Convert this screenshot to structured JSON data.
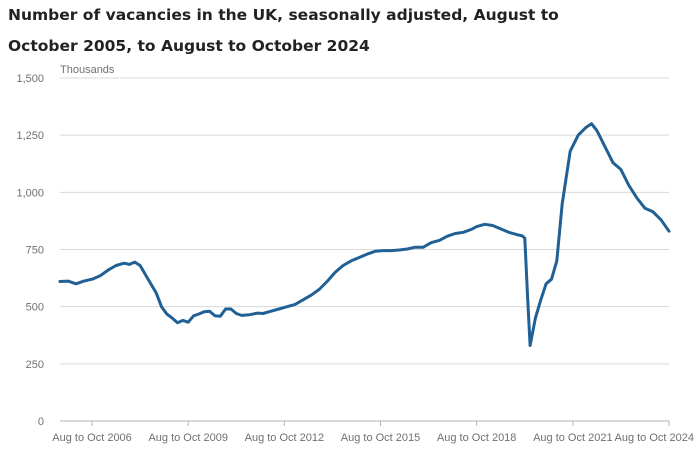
{
  "chart_data": {
    "type": "line",
    "title": "Number of vacancies in the UK, seasonally adjusted, August to October 2005, to August to October 2024",
    "ylabel": "Thousands",
    "xlabel": "",
    "ylim": [
      0,
      1500
    ],
    "xlim": [
      "2005-09",
      "2024-09"
    ],
    "grid": true,
    "legend": "none",
    "yticks": [
      {
        "value": 0,
        "label": "0"
      },
      {
        "value": 250,
        "label": "250"
      },
      {
        "value": 500,
        "label": "500"
      },
      {
        "value": 750,
        "label": "750"
      },
      {
        "value": 1000,
        "label": "1,000"
      },
      {
        "value": 1250,
        "label": "1,250"
      },
      {
        "value": 1500,
        "label": "1,500"
      }
    ],
    "xticks": [
      {
        "value": "2006-09",
        "label": "Aug to Oct 2006"
      },
      {
        "value": "2009-09",
        "label": "Aug to Oct 2009"
      },
      {
        "value": "2012-09",
        "label": "Aug to Oct 2012"
      },
      {
        "value": "2015-09",
        "label": "Aug to Oct 2015"
      },
      {
        "value": "2018-09",
        "label": "Aug to Oct 2018"
      },
      {
        "value": "2021-09",
        "label": "Aug to Oct 2021"
      },
      {
        "value": "2024-09",
        "label": "Aug to Oct 2024"
      }
    ],
    "series": [
      {
        "color": "#206095",
        "points": [
          [
            "2005-09",
            610
          ],
          [
            "2005-12",
            612
          ],
          [
            "2006-03",
            600
          ],
          [
            "2006-06",
            612
          ],
          [
            "2006-09",
            620
          ],
          [
            "2006-12",
            635
          ],
          [
            "2007-03",
            660
          ],
          [
            "2007-06",
            680
          ],
          [
            "2007-09",
            690
          ],
          [
            "2007-11",
            685
          ],
          [
            "2008-01",
            695
          ],
          [
            "2008-03",
            680
          ],
          [
            "2008-06",
            620
          ],
          [
            "2008-09",
            560
          ],
          [
            "2008-11",
            500
          ],
          [
            "2009-01",
            468
          ],
          [
            "2009-03",
            450
          ],
          [
            "2009-05",
            430
          ],
          [
            "2009-07",
            440
          ],
          [
            "2009-09",
            432
          ],
          [
            "2009-11",
            460
          ],
          [
            "2010-01",
            468
          ],
          [
            "2010-03",
            478
          ],
          [
            "2010-05",
            480
          ],
          [
            "2010-07",
            460
          ],
          [
            "2010-09",
            458
          ],
          [
            "2010-11",
            490
          ],
          [
            "2011-01",
            490
          ],
          [
            "2011-03",
            470
          ],
          [
            "2011-05",
            462
          ],
          [
            "2011-08",
            465
          ],
          [
            "2011-11",
            472
          ],
          [
            "2012-01",
            470
          ],
          [
            "2012-04",
            480
          ],
          [
            "2012-07",
            490
          ],
          [
            "2012-10",
            500
          ],
          [
            "2013-01",
            510
          ],
          [
            "2013-04",
            530
          ],
          [
            "2013-07",
            550
          ],
          [
            "2013-10",
            575
          ],
          [
            "2014-01",
            610
          ],
          [
            "2014-04",
            650
          ],
          [
            "2014-07",
            680
          ],
          [
            "2014-10",
            700
          ],
          [
            "2015-01",
            715
          ],
          [
            "2015-04",
            730
          ],
          [
            "2015-07",
            742
          ],
          [
            "2015-10",
            745
          ],
          [
            "2016-01",
            745
          ],
          [
            "2016-04",
            748
          ],
          [
            "2016-07",
            752
          ],
          [
            "2016-10",
            760
          ],
          [
            "2017-01",
            760
          ],
          [
            "2017-04",
            780
          ],
          [
            "2017-07",
            790
          ],
          [
            "2017-10",
            808
          ],
          [
            "2018-01",
            820
          ],
          [
            "2018-04",
            825
          ],
          [
            "2018-07",
            838
          ],
          [
            "2018-09",
            850
          ],
          [
            "2018-12",
            860
          ],
          [
            "2019-03",
            855
          ],
          [
            "2019-06",
            840
          ],
          [
            "2019-09",
            825
          ],
          [
            "2019-12",
            815
          ],
          [
            "2020-02",
            810
          ],
          [
            "2020-03",
            800
          ],
          [
            "2020-04",
            560
          ],
          [
            "2020-05",
            330
          ],
          [
            "2020-07",
            450
          ],
          [
            "2020-09",
            530
          ],
          [
            "2020-11",
            600
          ],
          [
            "2021-01",
            620
          ],
          [
            "2021-03",
            700
          ],
          [
            "2021-05",
            950
          ],
          [
            "2021-08",
            1180
          ],
          [
            "2021-11",
            1250
          ],
          [
            "2022-02",
            1285
          ],
          [
            "2022-04",
            1300
          ],
          [
            "2022-06",
            1270
          ],
          [
            "2022-09",
            1200
          ],
          [
            "2022-12",
            1130
          ],
          [
            "2023-03",
            1100
          ],
          [
            "2023-06",
            1030
          ],
          [
            "2023-09",
            975
          ],
          [
            "2023-12",
            930
          ],
          [
            "2024-03",
            915
          ],
          [
            "2024-06",
            880
          ],
          [
            "2024-09",
            830
          ]
        ]
      }
    ]
  }
}
